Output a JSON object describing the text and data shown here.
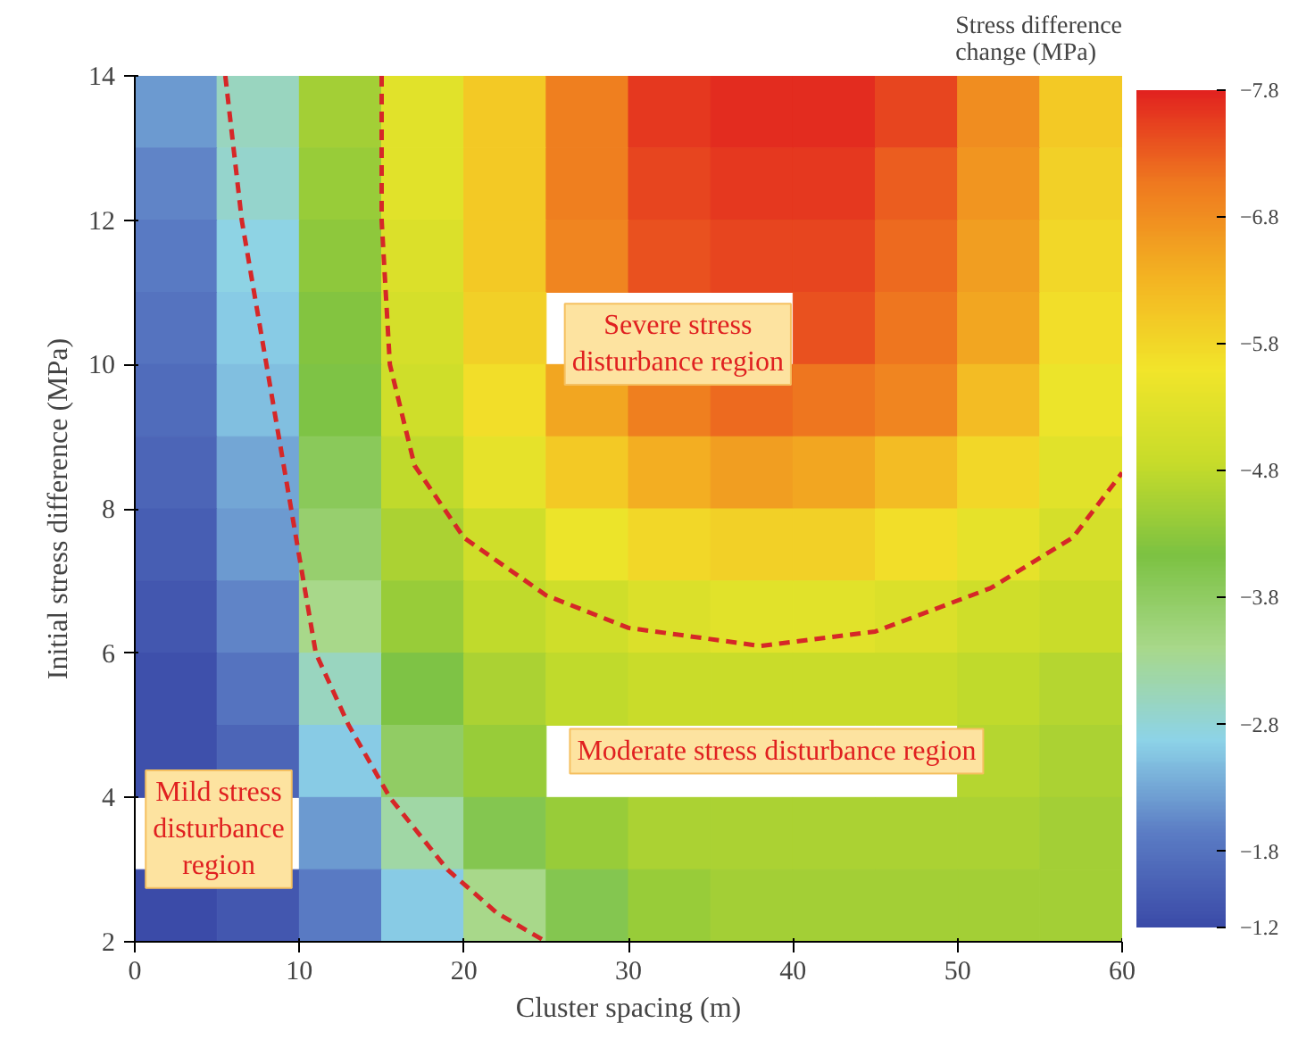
{
  "chart_data": {
    "type": "heatmap",
    "xlabel": "Cluster spacing (m)",
    "ylabel": "Initial stress difference (MPa)",
    "clabel": "Stress difference\nchange (MPa)",
    "x": [
      2.5,
      7.5,
      12.5,
      17.5,
      22.5,
      27.5,
      32.5,
      37.5,
      42.5,
      47.5,
      52.5,
      57.5
    ],
    "y": [
      13.5,
      12.5,
      11.5,
      10.5,
      9.5,
      8.5,
      7.5,
      6.5,
      5.5,
      4.5,
      3.5,
      2.5
    ],
    "cells": [
      [
        -2.2,
        -3.0,
        -4.5,
        -5.3,
        -6.0,
        -7.0,
        -7.6,
        -7.7,
        -7.7,
        -7.5,
        -6.8,
        -6.0
      ],
      [
        -2.0,
        -2.9,
        -4.4,
        -5.3,
        -6.0,
        -7.0,
        -7.5,
        -7.6,
        -7.6,
        -7.3,
        -6.7,
        -5.9
      ],
      [
        -1.9,
        -2.7,
        -4.3,
        -5.2,
        -6.0,
        -6.9,
        -7.4,
        -7.5,
        -7.5,
        -7.2,
        -6.6,
        -5.8
      ],
      [
        -1.8,
        -2.6,
        -4.2,
        -5.1,
        -5.9,
        null,
        null,
        null,
        -7.4,
        -7.1,
        -6.5,
        -5.7
      ],
      [
        -1.7,
        -2.5,
        -4.1,
        -5.0,
        -5.7,
        -6.5,
        -7.0,
        -7.2,
        -7.1,
        -6.9,
        -6.2,
        -5.5
      ],
      [
        -1.6,
        -2.3,
        -3.9,
        -4.8,
        -5.4,
        -6.0,
        -6.4,
        -6.6,
        -6.5,
        -6.2,
        -5.8,
        -5.3
      ],
      [
        -1.5,
        -2.2,
        -3.7,
        -4.6,
        -5.0,
        -5.5,
        -5.8,
        -5.9,
        -5.9,
        -5.7,
        -5.4,
        -5.1
      ],
      [
        -1.4,
        -2.0,
        -3.4,
        -4.4,
        -4.8,
        -5.0,
        -5.2,
        -5.3,
        -5.3,
        -5.2,
        -5.0,
        -4.9
      ],
      [
        -1.3,
        -1.8,
        -3.0,
        -4.1,
        -4.6,
        -4.8,
        -4.9,
        -4.9,
        -4.9,
        -4.9,
        -4.8,
        -4.7
      ],
      [
        -1.3,
        -1.6,
        -2.6,
        -3.8,
        -4.4,
        null,
        null,
        null,
        null,
        null,
        -4.7,
        -4.6
      ],
      [
        null,
        null,
        -2.2,
        -3.2,
        -4.0,
        -4.4,
        -4.6,
        -4.6,
        -4.6,
        -4.6,
        -4.6,
        -4.5
      ],
      [
        -1.2,
        -1.4,
        -1.9,
        -2.6,
        -3.4,
        -4.0,
        -4.4,
        -4.5,
        -4.5,
        -4.5,
        -4.5,
        -4.5
      ]
    ],
    "clim": [
      -1.2,
      -7.8
    ],
    "cticks": [
      -7.8,
      -6.8,
      -5.8,
      -4.8,
      -3.8,
      -2.8,
      -1.8,
      -1.2
    ],
    "xlim": [
      0,
      60
    ],
    "ylim": [
      2,
      14
    ],
    "xticks": [
      0,
      10,
      20,
      30,
      40,
      50,
      60
    ],
    "yticks": [
      2,
      4,
      6,
      8,
      10,
      12,
      14
    ],
    "series": [
      {
        "type": "line",
        "color": "#d62728",
        "line_style": "dashed",
        "x": [
          5.5,
          6.5,
          8,
          9.5,
          11,
          13,
          15.5,
          19,
          22,
          25
        ],
        "values": [
          14,
          12,
          10,
          8,
          6,
          5,
          4,
          3,
          2.4,
          2
        ]
      },
      {
        "type": "line",
        "color": "#d62728",
        "line_style": "dashed",
        "x": [
          15,
          15,
          15.5,
          17,
          20,
          25,
          30,
          38,
          45,
          52,
          57,
          60
        ],
        "values": [
          14,
          12,
          10,
          8.6,
          7.6,
          6.8,
          6.35,
          6.1,
          6.3,
          6.9,
          7.6,
          8.5
        ]
      }
    ],
    "annotations": [
      "Severe stress\ndisturbance region",
      "Moderate stress disturbance region",
      "Mild stress\ndisturbance\nregion"
    ],
    "grid": false
  }
}
